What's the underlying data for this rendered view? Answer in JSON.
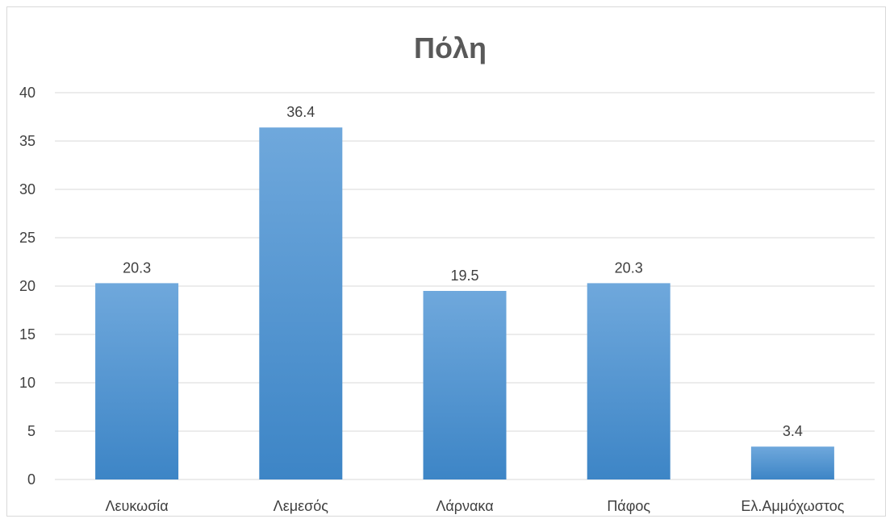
{
  "chart_data": {
    "type": "bar",
    "title": "Πόλη",
    "xlabel": "",
    "ylabel": "",
    "categories": [
      "Λευκωσία",
      "Λεμεσός",
      "Λάρνακα",
      "Πάφος",
      "Ελ.Αμμόχωστος"
    ],
    "values": [
      20.3,
      36.4,
      19.5,
      20.3,
      3.4
    ],
    "data_labels": [
      "20.3",
      "36.4",
      "19.5",
      "20.3",
      "3.4"
    ],
    "ylim": [
      0,
      40
    ],
    "yticks": [
      "0",
      "5",
      "10",
      "15",
      "20",
      "25",
      "30",
      "35",
      "40"
    ],
    "grid": true,
    "legend": "none",
    "bar_color_top": "#6fa8dc",
    "bar_color_bottom": "#3d85c6",
    "gridline_color": "#d9d9d9"
  }
}
